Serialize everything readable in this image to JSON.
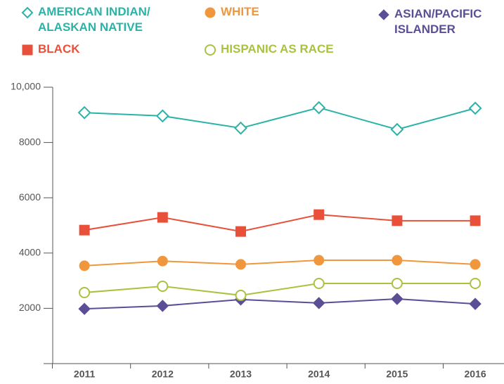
{
  "chart_data": {
    "type": "line",
    "categories": [
      "2011",
      "2012",
      "2013",
      "2014",
      "2015",
      "2016"
    ],
    "series": [
      {
        "name": "AMERICAN INDIAN/ ALASKAN NATIVE",
        "color": "#2bb3a8",
        "marker": "diamond-open",
        "values": [
          9080,
          8960,
          8520,
          9260,
          8470,
          9240
        ]
      },
      {
        "name": "WHITE",
        "color": "#f0963c",
        "marker": "circle",
        "values": [
          3540,
          3710,
          3590,
          3740,
          3740,
          3590
        ]
      },
      {
        "name": "ASIAN/PACIFIC ISLANDER",
        "color": "#5b4e96",
        "marker": "diamond",
        "values": [
          1980,
          2090,
          2320,
          2190,
          2340,
          2160
        ]
      },
      {
        "name": "BLACK",
        "color": "#e8503a",
        "marker": "square",
        "values": [
          4830,
          5290,
          4780,
          5390,
          5170,
          5170
        ]
      },
      {
        "name": "HISPANIC AS RACE",
        "color": "#a9c23f",
        "marker": "circle-open",
        "values": [
          2570,
          2800,
          2470,
          2900,
          2900,
          2900
        ]
      }
    ],
    "ylim": [
      0,
      10000
    ],
    "yticks": [
      2000,
      4000,
      6000,
      8000,
      {
        "value": 10000,
        "label": "10,000"
      }
    ]
  }
}
